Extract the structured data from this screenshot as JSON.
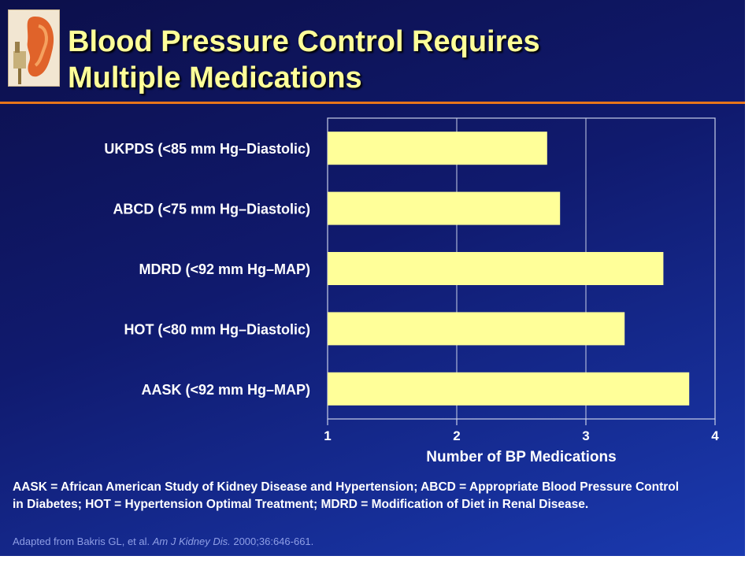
{
  "slide": {
    "title_line1": "Blood Pressure Control Requires",
    "title_line2": "Multiple Medications",
    "footnote": "AASK = African American Study of Kidney Disease and Hypertension; ABCD = Appropriate Blood Pressure Control in Diabetes; HOT = Hypertension Optimal Treatment; MDRD = Modification of Diet in Renal Disease.",
    "source_prefix": "Adapted from Bakris GL, et al. ",
    "source_journal": "Am J Kidney Dis.",
    "source_suffix": " 2000;36:646-661."
  },
  "colors": {
    "bar": "#ffff99",
    "title": "#ffff99",
    "rule": "#e8751a",
    "grid": "#c8cfe8"
  },
  "chart_data": {
    "type": "bar",
    "orientation": "horizontal",
    "categories": [
      "UKPDS (<85 mm Hg–Diastolic)",
      "ABCD (<75 mm Hg–Diastolic)",
      "MDRD (<92 mm Hg–MAP)",
      "HOT (<80 mm Hg–Diastolic)",
      "AASK (<92 mm Hg–MAP)"
    ],
    "values": [
      2.7,
      2.8,
      3.6,
      3.3,
      3.8
    ],
    "xlabel": "Number of BP Medications",
    "ylabel": "",
    "xlim": [
      1,
      4
    ],
    "xticks": [
      "1",
      "2",
      "3",
      "4"
    ],
    "grid": true,
    "legend": "none"
  }
}
